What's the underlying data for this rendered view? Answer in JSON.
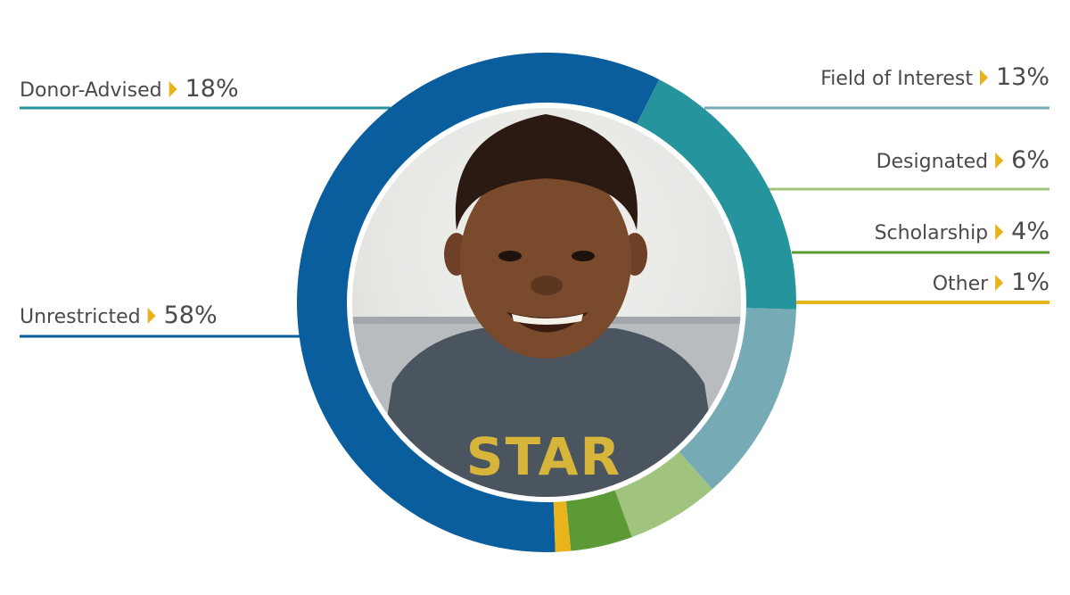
{
  "chart_data": {
    "type": "pie",
    "title": "",
    "style": "donut",
    "categories": [
      "Unrestricted",
      "Donor-Advised",
      "Field of Interest",
      "Designated",
      "Scholarship",
      "Other"
    ],
    "values": [
      58,
      18,
      13,
      6,
      4,
      1
    ],
    "value_labels": [
      "58%",
      "18%",
      "13%",
      "6%",
      "4%",
      "1%"
    ],
    "colors": [
      "#0a5e9e",
      "#25949d",
      "#76abb6",
      "#a0c47e",
      "#5c9a36",
      "#e9b31b"
    ],
    "arrow_color": "#e9b31b",
    "center_image": "photo of smiling child in a gray Star Wars t-shirt"
  }
}
